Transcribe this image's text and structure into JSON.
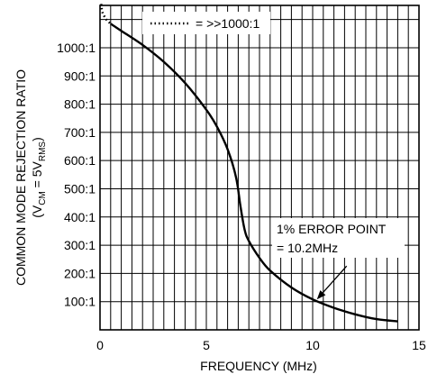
{
  "chart_data": {
    "type": "line",
    "title": "",
    "xlabel": "FREQUENCY (MHz)",
    "ylabel": {
      "main": "COMMON MODE REJECTION RATIO",
      "cond_open": "(V",
      "cond_sub1": "CM",
      "cond_mid": " = 5V",
      "cond_sub2": "RMS",
      "cond_close": ")"
    },
    "xlim": [
      0,
      15
    ],
    "ylim": [
      0,
      1150
    ],
    "x_ticks": [
      {
        "value": 0,
        "label": "0"
      },
      {
        "value": 5,
        "label": "5"
      },
      {
        "value": 10,
        "label": "10"
      },
      {
        "value": 15,
        "label": "15"
      }
    ],
    "y_ticks": [
      {
        "value": 100,
        "label": "100:1"
      },
      {
        "value": 200,
        "label": "200:1"
      },
      {
        "value": 300,
        "label": "300:1"
      },
      {
        "value": 400,
        "label": "400:1"
      },
      {
        "value": 500,
        "label": "500:1"
      },
      {
        "value": 600,
        "label": "600:1"
      },
      {
        "value": 700,
        "label": "700:1"
      },
      {
        "value": 800,
        "label": "800:1"
      },
      {
        "value": 900,
        "label": "900:1"
      },
      {
        "value": 1000,
        "label": "1000:1"
      }
    ],
    "grid": {
      "x_step": 0.5,
      "y_step": 100,
      "visible": true
    },
    "series": [
      {
        "name": ">>1000:1",
        "style": "dotted",
        "points": [
          [
            0.05,
            1155
          ],
          [
            0.12,
            1125
          ],
          [
            0.3,
            1100
          ],
          [
            0.5,
            1085
          ]
        ]
      },
      {
        "name": "",
        "style": "solid",
        "points": [
          [
            0.5,
            1085
          ],
          [
            1.0,
            1060
          ],
          [
            2.0,
            1010
          ],
          [
            3.0,
            950
          ],
          [
            4.0,
            875
          ],
          [
            5.0,
            780
          ],
          [
            5.5,
            720
          ],
          [
            6.0,
            640
          ],
          [
            6.4,
            540
          ],
          [
            6.6,
            440
          ],
          [
            6.8,
            355
          ],
          [
            7.0,
            315
          ],
          [
            7.5,
            255
          ],
          [
            8.0,
            210
          ],
          [
            9.0,
            150
          ],
          [
            10.0,
            108
          ],
          [
            11.0,
            78
          ],
          [
            12.0,
            55
          ],
          [
            13.0,
            38
          ],
          [
            14.0,
            30
          ]
        ]
      }
    ],
    "legend": {
      "text": "= >>1000:1",
      "position": "top-left"
    },
    "annotations": [
      {
        "line1": "1% ERROR POINT",
        "line2": "= 10.2MHz",
        "x": 10.2,
        "y": 108
      }
    ]
  }
}
